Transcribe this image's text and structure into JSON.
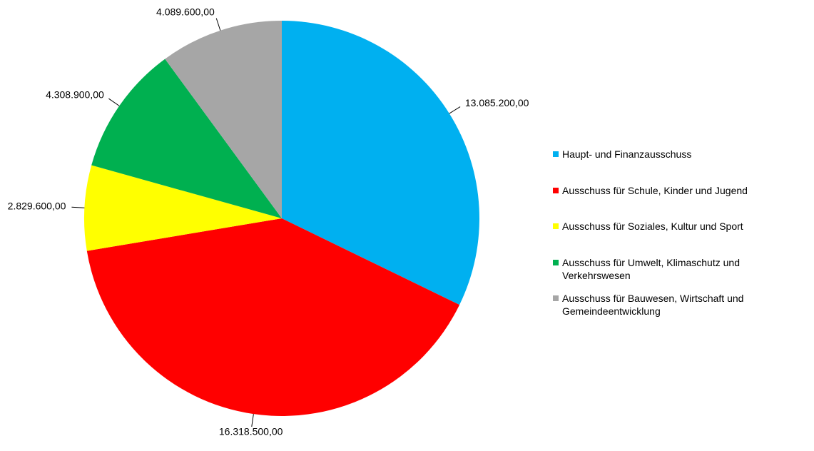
{
  "chart_data": {
    "type": "pie",
    "categories": [
      "Haupt- und Finanzausschuss",
      "Ausschuss für Schule, Kinder und Jugend",
      "Ausschuss für Soziales, Kultur und Sport",
      "Ausschuss für Umwelt, Klimaschutz und Verkehrswesen",
      "Ausschuss für Bauwesen, Wirtschaft und Gemeindeentwicklung"
    ],
    "values": [
      13085200,
      16318500,
      2829600,
      4308900,
      4089600
    ],
    "value_labels": [
      "13.085.200,00",
      "16.318.500,00",
      "2.829.600,00",
      "4.308.900,00",
      "4.089.600,00"
    ],
    "colors": [
      "#00b0f0",
      "#ff0000",
      "#ffff00",
      "#00b050",
      "#a6a6a6"
    ],
    "legend": "right"
  }
}
